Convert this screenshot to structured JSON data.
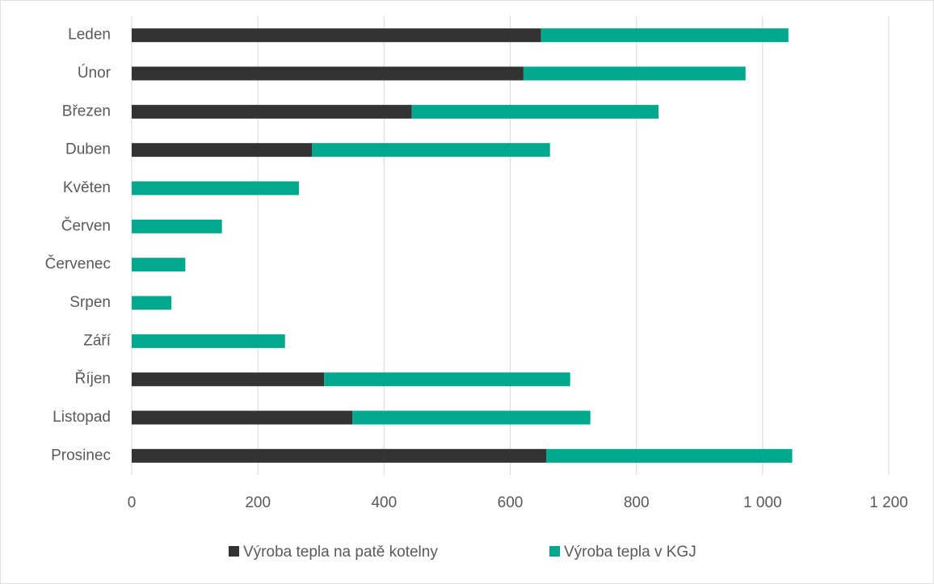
{
  "chart_data": {
    "type": "stacked_barh",
    "categories": [
      "Leden",
      "Únor",
      "Březen",
      "Duben",
      "Květen",
      "Červen",
      "Červenec",
      "Srpen",
      "Září",
      "Říjen",
      "Listopad",
      "Prosinec"
    ],
    "series": [
      {
        "name": "Výroba tepla na patě kotelny",
        "color": "#333333",
        "values": [
          649,
          621,
          444,
          286,
          0,
          0,
          0,
          0,
          0,
          305,
          350,
          657
        ]
      },
      {
        "name": "Výroba tepla v KGJ",
        "color": "#00a88e",
        "values": [
          392,
          352,
          391,
          377,
          265,
          143,
          85,
          63,
          243,
          390,
          377,
          390
        ]
      }
    ],
    "xlim": [
      0,
      1200
    ],
    "xticks": [
      0,
      200,
      400,
      600,
      800,
      {
        "value": 1000,
        "label": "1 000"
      },
      {
        "value": 1200,
        "label": "1 200"
      }
    ],
    "grid": true,
    "legend": "bottom"
  }
}
